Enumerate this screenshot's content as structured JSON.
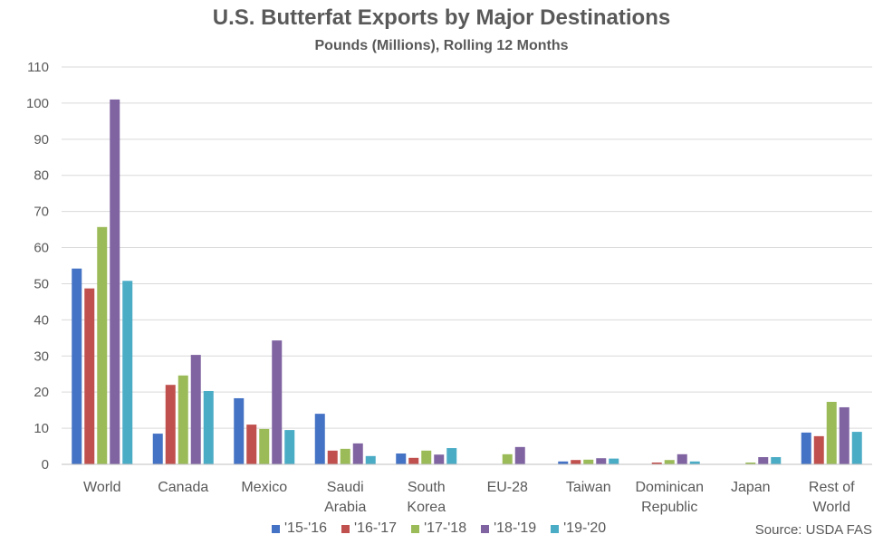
{
  "chart_data": {
    "type": "bar",
    "title": "U.S. Butterfat Exports by Major Destinations",
    "subtitle": "Pounds (Millions), Rolling 12 Months",
    "xlabel": "",
    "ylabel": "",
    "ylim": [
      0,
      110
    ],
    "yticks": [
      0,
      10,
      20,
      30,
      40,
      50,
      60,
      70,
      80,
      90,
      100,
      110
    ],
    "grid": true,
    "legend_position": "bottom",
    "categories": [
      "World",
      "Canada",
      "Mexico",
      "Saudi Arabia",
      "South Korea",
      "EU-28",
      "Taiwan",
      "Dominican Republic",
      "Japan",
      "Rest of World"
    ],
    "category_label_lines": [
      [
        "World"
      ],
      [
        "Canada"
      ],
      [
        "Mexico"
      ],
      [
        "Saudi",
        "Arabia"
      ],
      [
        "South",
        "Korea"
      ],
      [
        "EU-28"
      ],
      [
        "Taiwan"
      ],
      [
        "Dominican",
        "Republic"
      ],
      [
        "Japan"
      ],
      [
        "Rest of",
        "World"
      ]
    ],
    "series": [
      {
        "name": "'15-'16",
        "color": "#4472C4",
        "values": [
          54.2,
          8.5,
          18.3,
          14.0,
          3.0,
          0,
          0.8,
          0,
          0,
          8.8
        ]
      },
      {
        "name": "'16-'17",
        "color": "#C0504D",
        "values": [
          48.7,
          22.0,
          11.0,
          3.8,
          1.8,
          0,
          1.2,
          0.5,
          0,
          7.8
        ]
      },
      {
        "name": "'17-'18",
        "color": "#9BBB59",
        "values": [
          65.7,
          24.6,
          9.8,
          4.3,
          3.8,
          2.8,
          1.3,
          1.2,
          0.5,
          17.3
        ]
      },
      {
        "name": "'18-'19",
        "color": "#8064A2",
        "values": [
          101.0,
          30.3,
          34.3,
          5.8,
          2.7,
          4.8,
          1.7,
          2.8,
          2.0,
          15.8
        ]
      },
      {
        "name": "'19-'20",
        "color": "#4BACC6",
        "values": [
          50.8,
          20.3,
          9.5,
          2.3,
          4.5,
          0,
          1.6,
          0.8,
          2.0,
          9.0
        ]
      }
    ],
    "source": "Source: USDA FAS"
  }
}
